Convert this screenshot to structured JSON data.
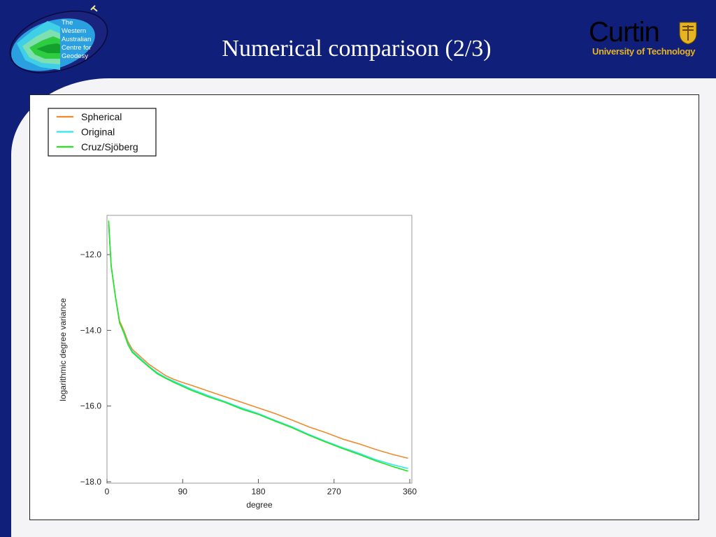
{
  "slide": {
    "title": "Numerical comparison (2/3)",
    "logo_left_text": [
      "The",
      "Western",
      "Australian",
      "Centre for",
      "Geodesy"
    ],
    "logo_right_name": "Curtin",
    "logo_right_sub": "University of Technology",
    "colors": {
      "background": "#0f1f7a",
      "panel": "#f4f4f7",
      "curtin_gold": "#e6b422"
    }
  },
  "chart_data": {
    "type": "line",
    "xlabel": "degree",
    "ylabel": "logarithmic degree variance",
    "xlim": [
      0,
      360
    ],
    "ylim": [
      -18.0,
      -11.0
    ],
    "xticks": [
      0,
      90,
      180,
      270,
      360
    ],
    "xtick_labels": [
      "0",
      "90",
      "180",
      "270",
      "360"
    ],
    "yticks": [
      -12.0,
      -14.0,
      -16.0,
      -18.0
    ],
    "ytick_labels": [
      "−12.0",
      "−14.0",
      "−16.0",
      "−18.0"
    ],
    "grid": false,
    "legend_position": "top-left",
    "series": [
      {
        "name": "Spherical",
        "color": "#f08a2e",
        "x": [
          2,
          5,
          10,
          15,
          20,
          25,
          30,
          40,
          50,
          60,
          70,
          80,
          90,
          100,
          120,
          140,
          160,
          180,
          200,
          220,
          240,
          260,
          280,
          300,
          320,
          340,
          358
        ],
        "y": [
          -11.2,
          -12.3,
          -13.1,
          -13.75,
          -14.0,
          -14.3,
          -14.5,
          -14.7,
          -14.9,
          -15.05,
          -15.2,
          -15.3,
          -15.38,
          -15.45,
          -15.6,
          -15.75,
          -15.9,
          -16.05,
          -16.2,
          -16.37,
          -16.55,
          -16.7,
          -16.87,
          -17.0,
          -17.15,
          -17.28,
          -17.38
        ]
      },
      {
        "name": "Original",
        "color": "#2ee6f0",
        "x": [
          2,
          5,
          10,
          15,
          20,
          25,
          30,
          40,
          50,
          60,
          70,
          80,
          90,
          100,
          120,
          140,
          160,
          180,
          200,
          220,
          240,
          260,
          280,
          300,
          320,
          340,
          358
        ],
        "y": [
          -11.2,
          -12.3,
          -13.1,
          -13.8,
          -14.05,
          -14.35,
          -14.55,
          -14.75,
          -14.95,
          -15.12,
          -15.25,
          -15.35,
          -15.45,
          -15.55,
          -15.72,
          -15.88,
          -16.05,
          -16.2,
          -16.38,
          -16.55,
          -16.75,
          -16.93,
          -17.1,
          -17.25,
          -17.42,
          -17.55,
          -17.65
        ]
      },
      {
        "name": "Cruz/Sjöberg",
        "color": "#22e61e",
        "x": [
          2,
          5,
          10,
          15,
          20,
          25,
          30,
          40,
          50,
          60,
          70,
          80,
          90,
          100,
          120,
          140,
          160,
          180,
          200,
          220,
          240,
          260,
          280,
          300,
          320,
          340,
          358
        ],
        "y": [
          -11.1,
          -12.3,
          -13.1,
          -13.8,
          -14.07,
          -14.38,
          -14.58,
          -14.78,
          -14.97,
          -15.15,
          -15.27,
          -15.38,
          -15.48,
          -15.58,
          -15.75,
          -15.9,
          -16.08,
          -16.22,
          -16.4,
          -16.57,
          -16.77,
          -16.95,
          -17.12,
          -17.28,
          -17.45,
          -17.6,
          -17.72
        ]
      }
    ]
  }
}
